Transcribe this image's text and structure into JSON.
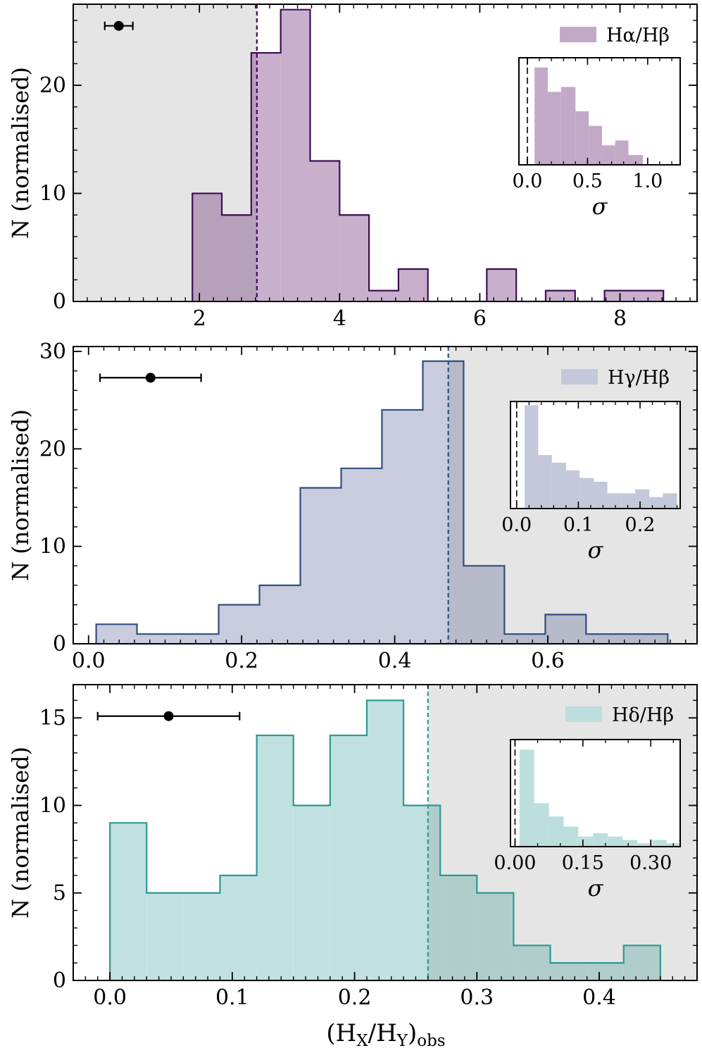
{
  "figure": {
    "xlabel_main": "(H",
    "xlabel_sub1": "X",
    "xlabel_mid": "/H",
    "xlabel_sub2": "Y",
    "xlabel_end": ")",
    "xlabel_sub3": "obs"
  },
  "chart_data": [
    {
      "type": "histogram",
      "name": "Halpha-Hbeta",
      "legend": "Hα/Hβ",
      "ylabel": "N (normalised)",
      "color_edge": "#3f0c55",
      "color_fill": "#c3a9c8",
      "xlim": [
        0.2,
        9.1
      ],
      "ylim": [
        0,
        27.5
      ],
      "xticks": [
        2,
        4,
        6,
        8
      ],
      "xtick_labels": [
        "2",
        "4",
        "6",
        "8"
      ],
      "xminor_step": 0.2,
      "yticks": [
        0,
        10,
        20
      ],
      "ytick_labels": [
        "0",
        "10",
        "20"
      ],
      "yminor_step": 2,
      "bin_edges": [
        1.9,
        2.32,
        2.74,
        3.16,
        3.58,
        4.0,
        4.42,
        4.84,
        5.26,
        5.68,
        6.1,
        6.52,
        6.94,
        7.36,
        7.78,
        8.2,
        8.62
      ],
      "counts": [
        10,
        8,
        23,
        27,
        13,
        8,
        1,
        3,
        0,
        0,
        3,
        0,
        1,
        0,
        1,
        1
      ],
      "threshold": 2.82,
      "shade_side": "left",
      "errorbar": {
        "x": 0.85,
        "y": 25.5,
        "xerr": 0.2
      },
      "inset": {
        "xlabel": "σ",
        "xlim": [
          -0.07,
          1.27
        ],
        "xticks": [
          0.0,
          0.5,
          1.0
        ],
        "xtick_labels": [
          "0.0",
          "0.5",
          "1.0"
        ],
        "xminor_step": 0.1,
        "ylim": [
          0,
          22
        ],
        "bin_edges": [
          0.06,
          0.17,
          0.28,
          0.4,
          0.51,
          0.62,
          0.73,
          0.84,
          0.96
        ],
        "counts": [
          20,
          15,
          16,
          11,
          8,
          4,
          5,
          2
        ],
        "vline": 0.0
      }
    },
    {
      "type": "histogram",
      "name": "Hgamma-Hbeta",
      "legend": "Hγ/Hβ",
      "ylabel": "N (normalised)",
      "color_edge": "#334d7e",
      "color_fill": "#c3c8da",
      "xlim": [
        -0.02,
        0.795
      ],
      "ylim": [
        0,
        30.5
      ],
      "xticks": [
        0.0,
        0.2,
        0.4,
        0.6
      ],
      "xtick_labels": [
        "0.0",
        "0.2",
        "0.4",
        "0.6"
      ],
      "xminor_step": 0.02,
      "yticks": [
        0,
        10,
        20,
        30
      ],
      "ytick_labels": [
        "0",
        "10",
        "20",
        "30"
      ],
      "yminor_step": 2,
      "bin_edges": [
        0.01,
        0.0633,
        0.1167,
        0.17,
        0.2233,
        0.2767,
        0.33,
        0.3833,
        0.4367,
        0.49,
        0.5433,
        0.5967,
        0.65,
        0.7033,
        0.7567
      ],
      "counts": [
        2,
        1,
        1,
        4,
        6,
        16,
        18,
        24,
        29,
        8,
        1,
        3,
        1,
        1
      ],
      "threshold": 0.47,
      "shade_side": "right",
      "errorbar": {
        "x": 0.081,
        "y": 27.3,
        "xerr": 0.066
      },
      "inset": {
        "xlabel": "σ",
        "xlim": [
          -0.01,
          0.265
        ],
        "xticks": [
          0.0,
          0.1,
          0.2
        ],
        "xtick_labels": [
          "0.0",
          "0.1",
          "0.2"
        ],
        "xminor_step": 0.02,
        "ylim": [
          0,
          28
        ],
        "bin_edges": [
          0.013,
          0.035,
          0.057,
          0.08,
          0.102,
          0.125,
          0.147,
          0.17,
          0.192,
          0.215,
          0.237,
          0.26
        ],
        "counts": [
          27,
          14,
          12,
          10,
          8,
          7,
          4,
          4,
          5,
          3,
          4
        ],
        "vline": 0.0
      }
    },
    {
      "type": "histogram",
      "name": "Hdelta-Hbeta",
      "legend": "Hδ/Hβ",
      "ylabel": "N (normalised)",
      "color_edge": "#2a9a92",
      "color_fill": "#bcdedd",
      "xlim": [
        -0.03,
        0.48
      ],
      "ylim": [
        0,
        16.9
      ],
      "xticks": [
        0.0,
        0.1,
        0.2,
        0.3,
        0.4
      ],
      "xtick_labels": [
        "0.0",
        "0.1",
        "0.2",
        "0.3",
        "0.4"
      ],
      "xminor_step": 0.01,
      "yticks": [
        0,
        5,
        10,
        15
      ],
      "ytick_labels": [
        "0",
        "5",
        "10",
        "15"
      ],
      "yminor_step": 1,
      "bin_edges": [
        0.0,
        0.03,
        0.06,
        0.09,
        0.12,
        0.15,
        0.18,
        0.21,
        0.24,
        0.27,
        0.3,
        0.33,
        0.36,
        0.39,
        0.42,
        0.45
      ],
      "counts": [
        9,
        5,
        5,
        6,
        14,
        10,
        14,
        16,
        10,
        6,
        5,
        2,
        1,
        1,
        2
      ],
      "threshold": 0.26,
      "shade_side": "right",
      "errorbar": {
        "x": 0.048,
        "y": 15.1,
        "xerr": 0.058
      },
      "inset": {
        "xlabel": "σ",
        "xlim": [
          -0.01,
          0.365
        ],
        "xticks": [
          0.0,
          0.15,
          0.3
        ],
        "xtick_labels": [
          "0.00",
          "0.15",
          "0.30"
        ],
        "xminor_step": 0.05,
        "ylim": [
          0,
          32
        ],
        "bin_edges": [
          0.01,
          0.0425,
          0.075,
          0.1075,
          0.14,
          0.1725,
          0.205,
          0.2375,
          0.27,
          0.3025,
          0.335,
          0.3675
        ],
        "counts": [
          29,
          13,
          9,
          6,
          3,
          4,
          3,
          2,
          1,
          2,
          1
        ],
        "vline": 0.0
      }
    }
  ]
}
